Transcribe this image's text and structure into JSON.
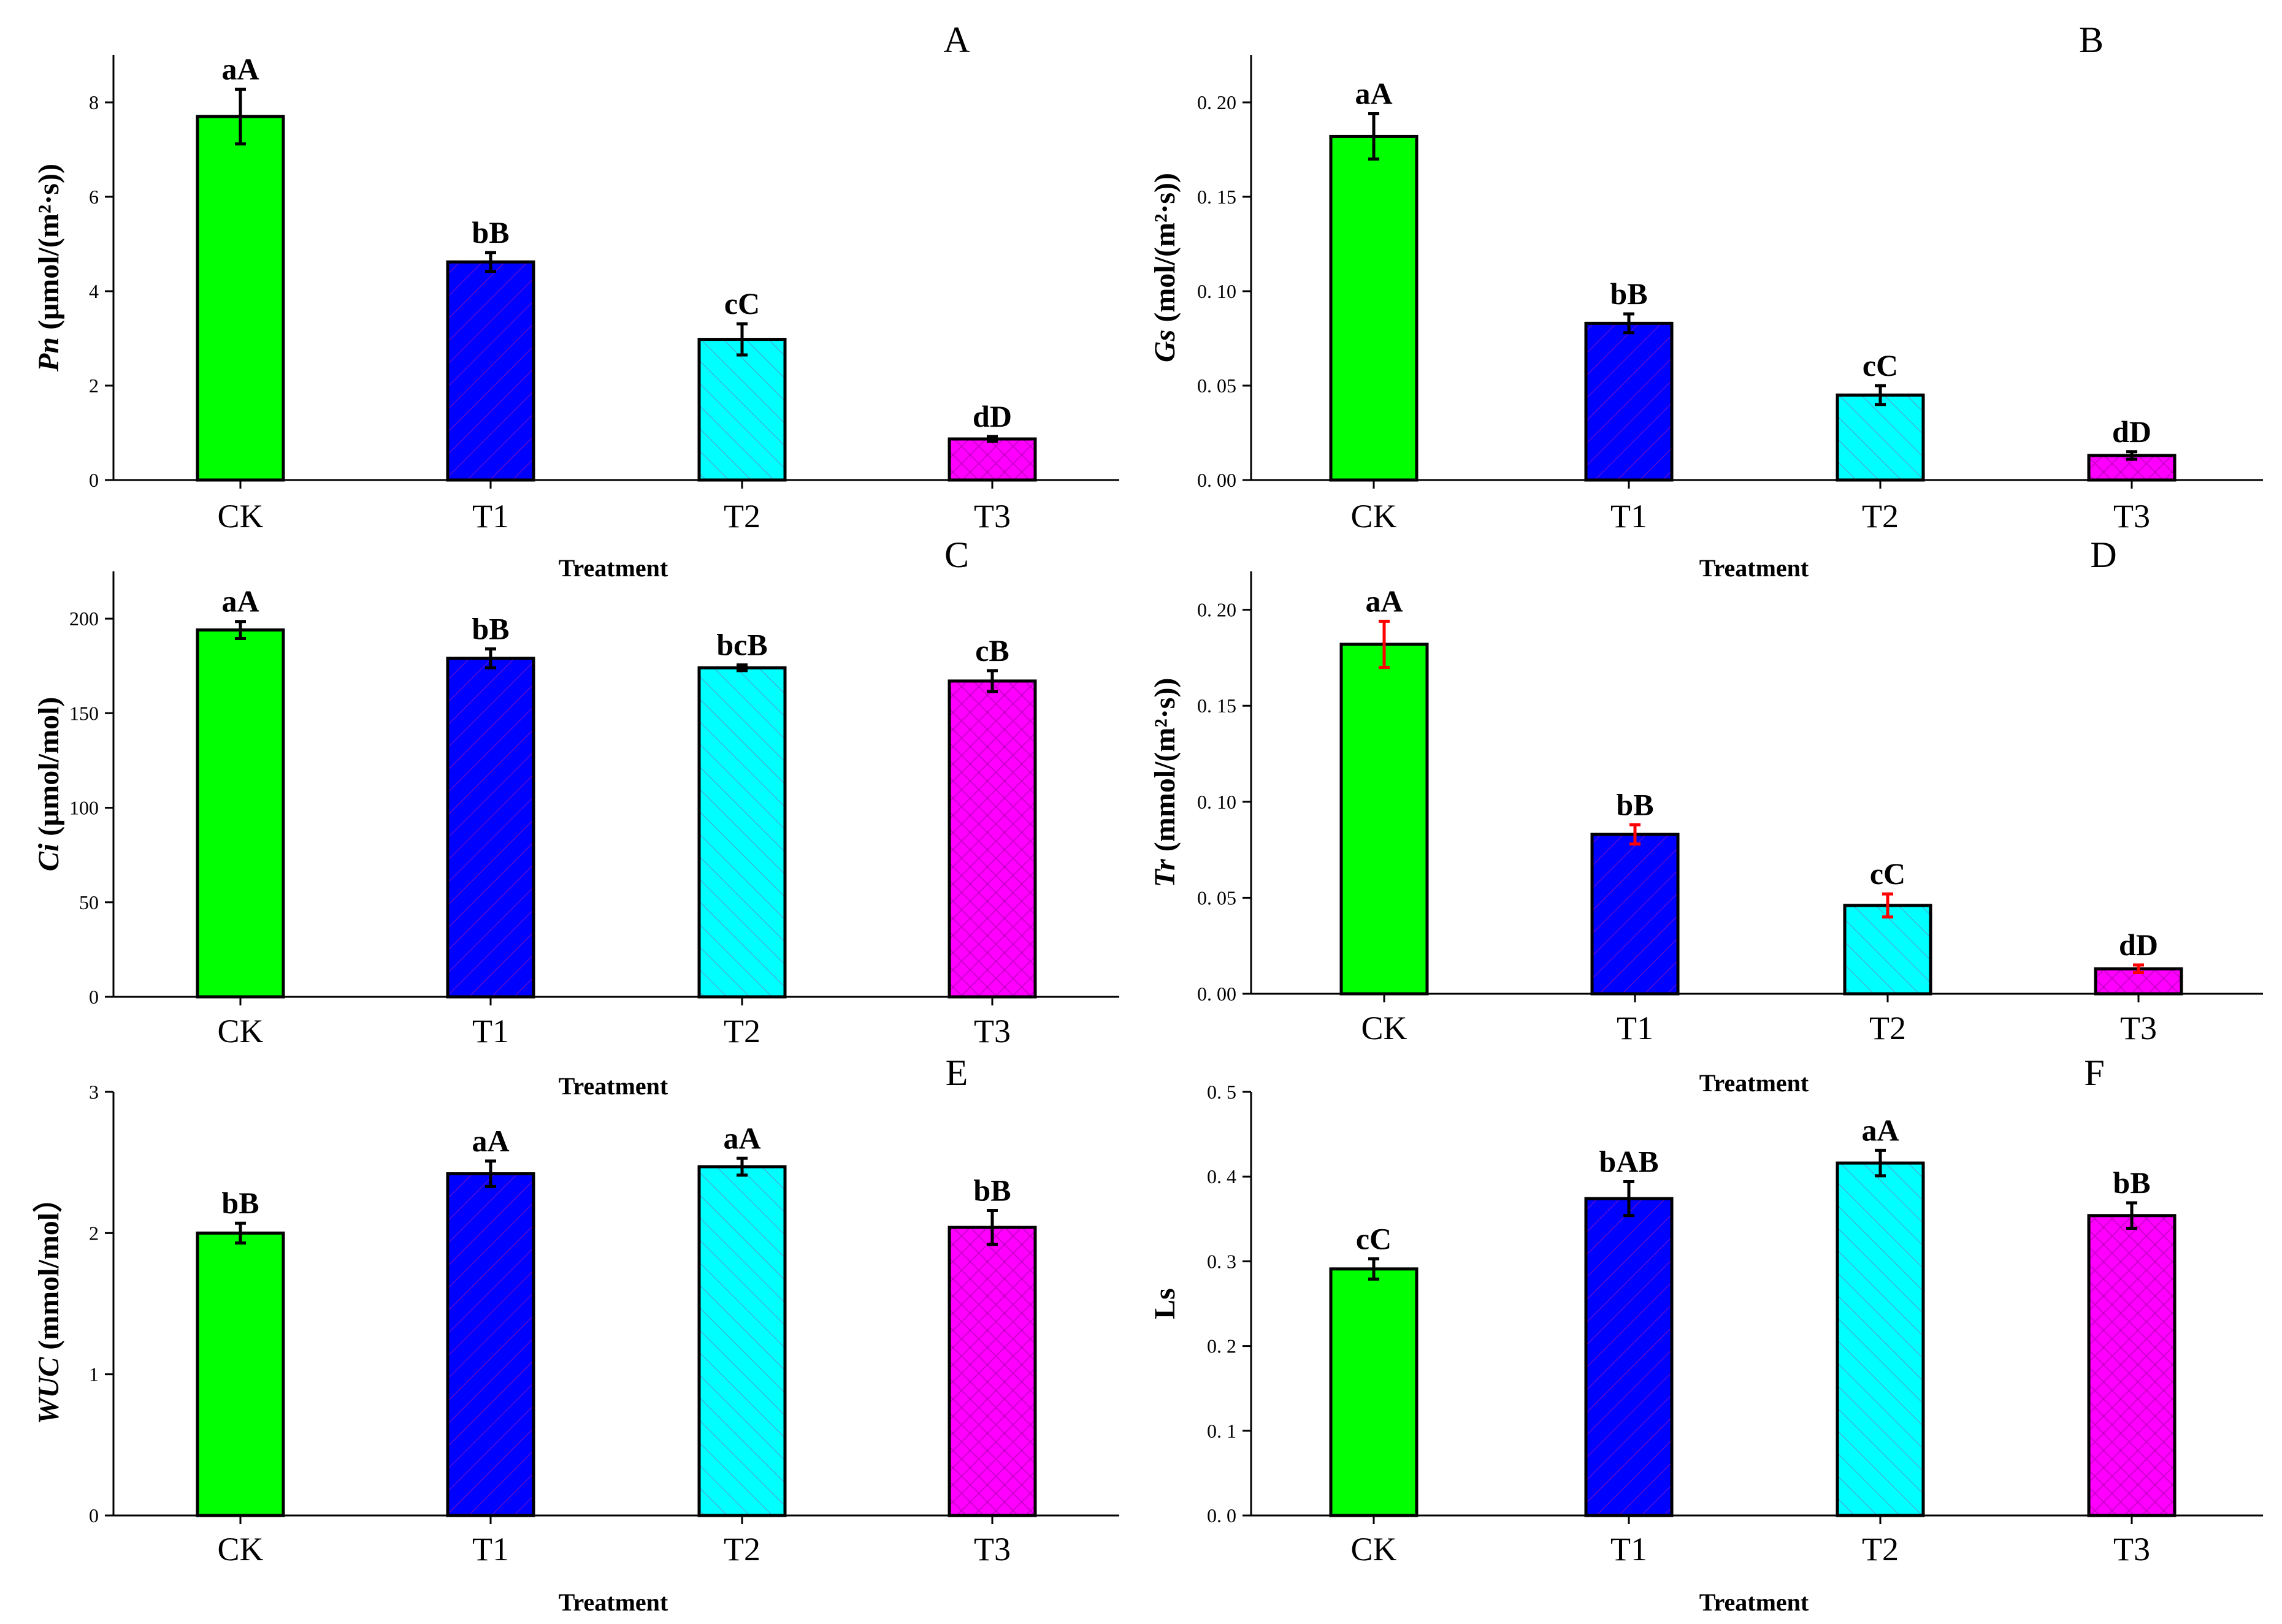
{
  "colors": {
    "CK": "#00ff00",
    "T1": "#0000ff",
    "T2": "#00ffff",
    "T3": "#ff00ff",
    "hatch": "#e0208a",
    "errorRed": "#ff0000"
  },
  "chart_data": [
    {
      "panel": "A",
      "type": "bar",
      "categories": [
        "CK",
        "T1",
        "T2",
        "T3"
      ],
      "values": [
        7.7,
        4.62,
        2.98,
        0.87
      ],
      "errors": [
        0.58,
        0.2,
        0.33,
        0.05
      ],
      "letters": [
        "aA",
        "bB",
        "cC",
        "dD"
      ],
      "ylim": [
        0,
        9
      ],
      "yticks": [
        0,
        2,
        4,
        6,
        8
      ],
      "ytick_labels": [
        "0",
        "2",
        "4",
        "6",
        "8"
      ],
      "ylabel_italic": "Pn",
      "ylabel_rest": " (μmol/(m²·s))",
      "xlabel": "Treatment",
      "error_color": "black"
    },
    {
      "panel": "B",
      "type": "bar",
      "categories": [
        "CK",
        "T1",
        "T2",
        "T3"
      ],
      "values": [
        0.182,
        0.083,
        0.045,
        0.013
      ],
      "errors": [
        0.012,
        0.005,
        0.005,
        0.002
      ],
      "letters": [
        "aA",
        "bB",
        "cC",
        "dD"
      ],
      "ylim": [
        0,
        0.225
      ],
      "yticks": [
        0,
        0.05,
        0.1,
        0.15,
        0.2
      ],
      "ytick_labels": [
        "0. 00",
        "0. 05",
        "0. 10",
        "0. 15",
        "0. 20"
      ],
      "ylabel_italic": "Gs",
      "ylabel_rest": " (mol/(m²·s))",
      "xlabel": "Treatment",
      "error_color": "black"
    },
    {
      "panel": "C",
      "type": "bar",
      "categories": [
        "CK",
        "T1",
        "T2",
        "T3"
      ],
      "values": [
        194,
        179,
        174,
        167
      ],
      "errors": [
        4.5,
        5,
        1.5,
        5.5
      ],
      "letters": [
        "aA",
        "bB",
        "bcB",
        "cB"
      ],
      "ylim": [
        0,
        225
      ],
      "yticks": [
        0,
        50,
        100,
        150,
        200
      ],
      "ytick_labels": [
        "0",
        "50",
        "100",
        "150",
        "200"
      ],
      "ylabel_italic": "Ci",
      "ylabel_rest": " (μmol/mol)",
      "xlabel": "Treatment",
      "error_color": "black"
    },
    {
      "panel": "D",
      "type": "bar",
      "categories": [
        "CK",
        "T1",
        "T2",
        "T3"
      ],
      "values": [
        0.182,
        0.083,
        0.046,
        0.013
      ],
      "errors": [
        0.012,
        0.005,
        0.006,
        0.002
      ],
      "letters": [
        "aA",
        "bB",
        "cC",
        "dD"
      ],
      "ylim": [
        0,
        0.22
      ],
      "yticks": [
        0,
        0.05,
        0.1,
        0.15,
        0.2
      ],
      "ytick_labels": [
        "0. 00",
        "0. 05",
        "0. 10",
        "0. 15",
        "0. 20"
      ],
      "ylabel_italic": "Tr",
      "ylabel_rest": " (mmol/(m²·s))",
      "xlabel": "Treatment",
      "error_color": "red"
    },
    {
      "panel": "E",
      "type": "bar",
      "categories": [
        "CK",
        "T1",
        "T2",
        "T3"
      ],
      "values": [
        2.0,
        2.42,
        2.47,
        2.04
      ],
      "errors": [
        0.07,
        0.09,
        0.06,
        0.12
      ],
      "letters": [
        "bB",
        "aA",
        "aA",
        "bB"
      ],
      "ylim": [
        0,
        3
      ],
      "yticks": [
        0,
        1,
        2,
        3
      ],
      "ytick_labels": [
        "0",
        "1",
        "2",
        "3"
      ],
      "ylabel_italic": "WUC",
      "ylabel_rest": " (mmol/mol）",
      "xlabel": "Treatment",
      "error_color": "black"
    },
    {
      "panel": "F",
      "type": "bar",
      "categories": [
        "CK",
        "T1",
        "T2",
        "T3"
      ],
      "values": [
        0.291,
        0.374,
        0.416,
        0.354
      ],
      "errors": [
        0.012,
        0.02,
        0.015,
        0.015
      ],
      "letters": [
        "cC",
        "bAB",
        "aA",
        "bB"
      ],
      "ylim": [
        0,
        0.5
      ],
      "yticks": [
        0,
        0.1,
        0.2,
        0.3,
        0.4,
        0.5
      ],
      "ytick_labels": [
        "0. 0",
        "0. 1",
        "0. 2",
        "0. 3",
        "0. 4",
        "0. 5"
      ],
      "ylabel_italic": "",
      "ylabel_rest": "Ls",
      "xlabel": "Treatment",
      "error_color": "black"
    }
  ]
}
